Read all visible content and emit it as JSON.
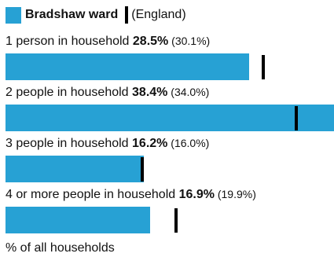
{
  "colors": {
    "bar": "#27a1d4",
    "reference": "#000000"
  },
  "chart_data": {
    "type": "bar",
    "orientation": "horizontal",
    "legend": {
      "series_label": "Bradshaw ward",
      "reference_label": "(England)",
      "placement": "top-left"
    },
    "categories": [
      "1 person in household",
      "2 people in household",
      "3 people in household",
      "4 or more people in household"
    ],
    "series": [
      {
        "name": "Bradshaw ward",
        "values": [
          28.5,
          38.4,
          16.2,
          16.9
        ],
        "value_labels": [
          "28.5%",
          "38.4%",
          "16.2%",
          "16.9%"
        ]
      },
      {
        "name": "England",
        "values": [
          30.1,
          34.0,
          16.0,
          19.9
        ],
        "value_labels": [
          "(30.1%)",
          "(34.0%)",
          "(16.0%)",
          "(19.9%)"
        ]
      }
    ],
    "xlim": [
      0,
      38.4
    ],
    "xlabel": "% of all households",
    "grid": false
  }
}
